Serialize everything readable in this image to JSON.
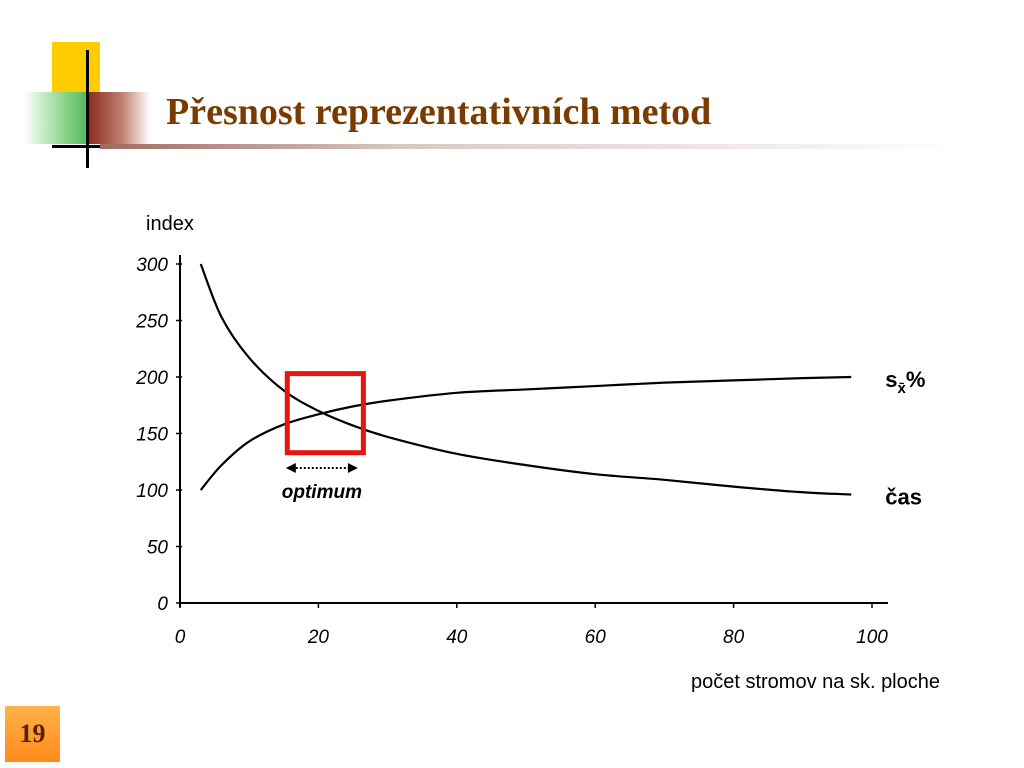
{
  "slide": {
    "title": "Přesnost reprezentativních metod",
    "number": "19"
  },
  "chart_data": {
    "type": "line",
    "title": "",
    "ylabel": "index",
    "xlabel": "počet stromov na sk. ploche",
    "xlim": [
      0,
      100
    ],
    "ylim": [
      0,
      300
    ],
    "x_ticks": [
      0,
      20,
      40,
      60,
      80,
      100
    ],
    "y_ticks": [
      0,
      50,
      100,
      150,
      200,
      250,
      300
    ],
    "grid": false,
    "series": [
      {
        "name": "s_x̄%",
        "label_main": "s",
        "label_sub": "x̄",
        "label_suffix": "%",
        "x": [
          3,
          6,
          10,
          15,
          20,
          25,
          30,
          40,
          50,
          60,
          70,
          80,
          90,
          97
        ],
        "y": [
          100,
          122,
          143,
          158,
          167,
          174,
          179,
          186,
          189,
          192,
          195,
          197,
          199,
          200
        ]
      },
      {
        "name": "čas",
        "label_main": "čas",
        "x": [
          3,
          6,
          10,
          15,
          20,
          25,
          30,
          40,
          50,
          60,
          70,
          80,
          90,
          97
        ],
        "y": [
          300,
          253,
          217,
          188,
          170,
          157,
          147,
          132,
          122,
          114,
          109,
          103,
          98,
          96
        ]
      }
    ],
    "annotations": [
      {
        "type": "arrow",
        "text": "optimum",
        "x_range": [
          15,
          26
        ]
      }
    ],
    "highlight": {
      "x_range": [
        15.5,
        26.5
      ],
      "y_range": [
        133,
        203
      ],
      "color": "#e8150f"
    }
  }
}
